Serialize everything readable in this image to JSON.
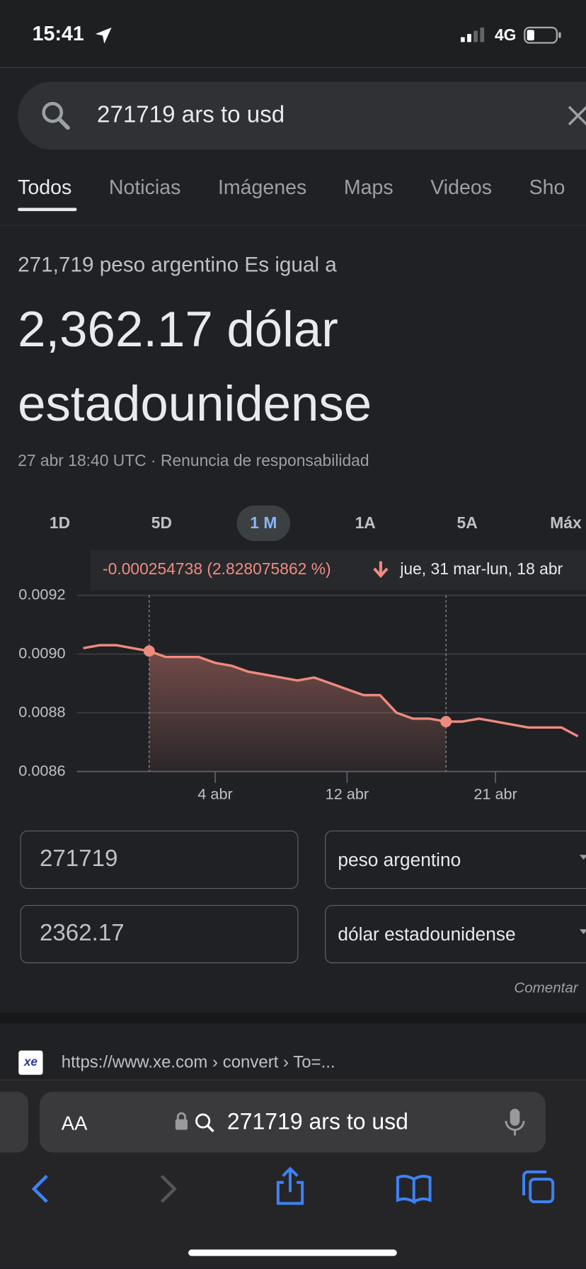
{
  "status_bar": {
    "time": "15:41",
    "network": "4G"
  },
  "search": {
    "query": "271719 ars to usd"
  },
  "tabs": [
    "Todos",
    "Noticias",
    "Imágenes",
    "Maps",
    "Videos",
    "Sho"
  ],
  "result": {
    "source_amount": "271,719 peso argentino Es igual a",
    "amount": "2,362.17 dólar estadounidense",
    "timestamp": "27 abr 18:40 UTC · Renuncia de responsabilidad"
  },
  "chart_data": {
    "type": "line",
    "ranges": [
      "1D",
      "5D",
      "1 M",
      "1A",
      "5A",
      "Máx"
    ],
    "selected_range": "1 M",
    "change": "-0.000254738 (2.828075862 %)",
    "period": "jue, 31 mar-lun, 18 abr",
    "categories": [
      null,
      null,
      null,
      null,
      null,
      null,
      null,
      null,
      "4 abr",
      null,
      null,
      null,
      null,
      null,
      null,
      null,
      "12 abr",
      null,
      null,
      null,
      null,
      null,
      null,
      null,
      null,
      "21 abr",
      null,
      null,
      null,
      null,
      null
    ],
    "values": [
      0.00902,
      0.00903,
      0.00903,
      0.00902,
      0.00901,
      0.00899,
      0.00899,
      0.00899,
      0.00897,
      0.00896,
      0.00894,
      0.00893,
      0.00892,
      0.00891,
      0.00892,
      0.0089,
      0.00888,
      0.00886,
      0.00886,
      0.0088,
      0.00878,
      0.00878,
      0.00877,
      0.00877,
      0.00878,
      0.00877,
      0.00876,
      0.00875,
      0.00875,
      0.00875,
      0.00872
    ],
    "color": "#ee8a7e",
    "ylim": [
      0.0086,
      0.0092
    ],
    "yticks": [
      0.0086,
      0.0088,
      {
        "value": 0.009,
        "label": "0.0090"
      },
      0.0092
    ],
    "grid": true
  },
  "converter": {
    "rows": [
      {
        "amount": "271719",
        "unit": "peso argentino"
      },
      {
        "amount": "2362.17",
        "unit": "dólar estadounidense"
      }
    ],
    "feedback": "Comentar"
  },
  "results": [
    {
      "favicon": "xe",
      "url": "https://www.xe.com › convert › To=..."
    }
  ],
  "browser": {
    "aa": "AA",
    "address": "271719 ars to usd"
  }
}
